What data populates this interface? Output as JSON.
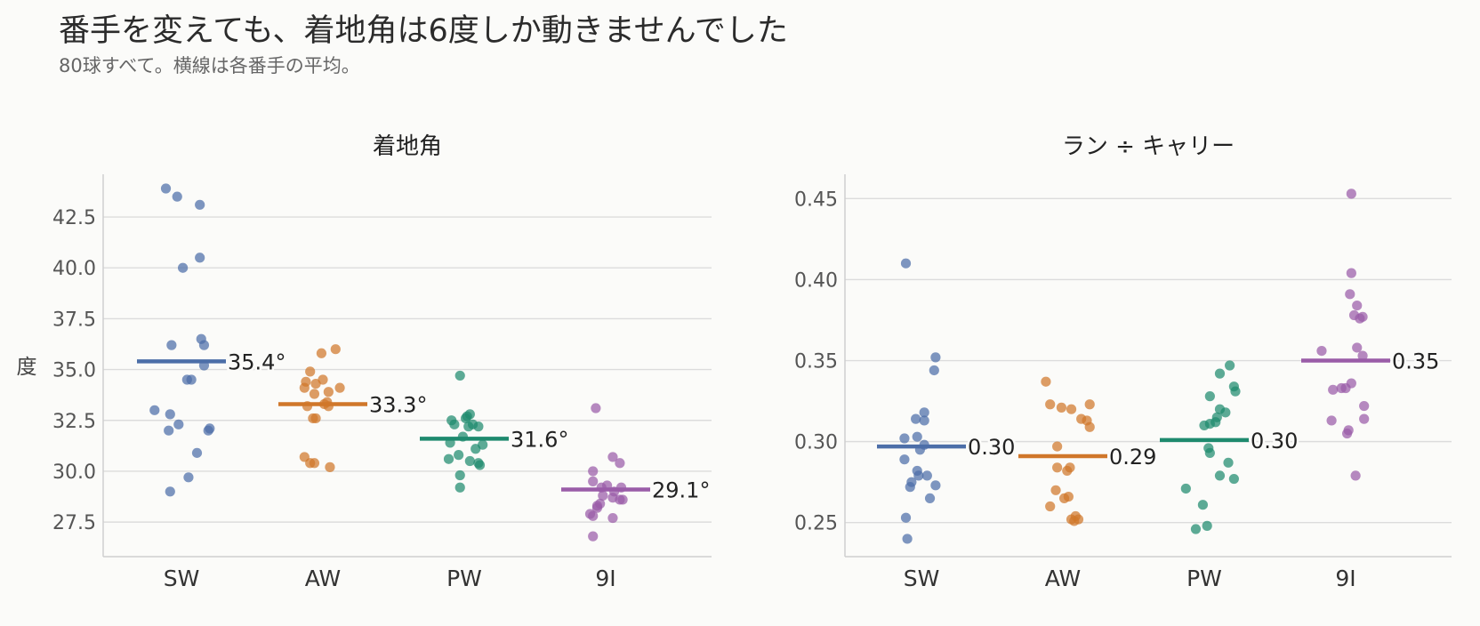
{
  "title": "番手を変えても、着地角は6度しか動きませんでした",
  "subtitle": "80球すべて。横線は各番手の平均。",
  "colors": {
    "SW": "#4c6ea8",
    "AW": "#d0772a",
    "PW": "#1e8a6e",
    "9I": "#9a5ca8",
    "grid": "#dcdcdc",
    "axis": "#cfcfcf"
  },
  "chart_data": [
    {
      "type": "scatter",
      "title": "着地角",
      "ylabel": "度",
      "xlabel": "",
      "categories": [
        "SW",
        "AW",
        "PW",
        "9I"
      ],
      "yticks": [
        "27.5",
        "30.0",
        "32.5",
        "35.0",
        "37.5",
        "40.0",
        "42.5"
      ],
      "ylim": [
        25.8,
        44.6
      ],
      "grid": true,
      "series": [
        {
          "name": "SW",
          "mean": 35.4,
          "mean_label": "35.4°",
          "values": [
            43.9,
            43.5,
            43.1,
            40.5,
            40.0,
            36.5,
            36.2,
            36.2,
            35.2,
            34.5,
            34.5,
            33.0,
            32.8,
            32.3,
            32.0,
            32.1,
            32.0,
            30.9,
            29.7,
            29.0
          ],
          "jitter": [
            -0.11,
            -0.03,
            0.13,
            0.13,
            0.01,
            0.14,
            0.16,
            -0.07,
            0.16,
            0.04,
            0.07,
            -0.19,
            -0.08,
            -0.02,
            -0.09,
            0.2,
            0.19,
            0.11,
            0.05,
            -0.08
          ]
        },
        {
          "name": "AW",
          "mean": 33.3,
          "mean_label": "33.3°",
          "values": [
            36.0,
            35.8,
            34.9,
            34.5,
            34.4,
            34.3,
            34.1,
            34.1,
            33.9,
            33.8,
            33.3,
            33.2,
            33.2,
            32.6,
            32.6,
            30.7,
            30.4,
            30.4,
            30.2,
            33.4
          ],
          "jitter": [
            0.09,
            -0.01,
            -0.09,
            0.0,
            -0.12,
            -0.05,
            0.12,
            -0.13,
            0.04,
            -0.06,
            0.01,
            -0.11,
            0.04,
            -0.07,
            -0.05,
            -0.13,
            -0.09,
            -0.06,
            0.05,
            0.03
          ]
        },
        {
          "name": "PW",
          "mean": 31.6,
          "mean_label": "31.6°",
          "values": [
            34.7,
            32.8,
            32.7,
            32.6,
            32.5,
            32.3,
            32.3,
            32.2,
            32.2,
            31.7,
            31.4,
            31.3,
            31.1,
            30.8,
            30.6,
            30.5,
            30.4,
            30.3,
            29.8,
            29.2
          ],
          "jitter": [
            -0.03,
            0.04,
            0.02,
            0.01,
            -0.09,
            0.06,
            -0.07,
            0.1,
            0.03,
            -0.01,
            -0.1,
            0.13,
            0.08,
            -0.04,
            -0.11,
            0.04,
            0.1,
            0.11,
            -0.03,
            -0.03
          ]
        },
        {
          "name": "9I",
          "mean": 29.1,
          "mean_label": "29.1°",
          "values": [
            33.1,
            30.7,
            30.4,
            30.0,
            29.5,
            29.3,
            29.2,
            29.2,
            29.0,
            28.8,
            28.7,
            28.6,
            28.6,
            28.4,
            28.3,
            28.2,
            27.9,
            27.8,
            27.7,
            26.8
          ],
          "jitter": [
            -0.07,
            0.05,
            0.1,
            -0.09,
            -0.09,
            0.01,
            -0.03,
            0.11,
            0.06,
            -0.02,
            0.05,
            0.1,
            0.12,
            -0.04,
            -0.06,
            -0.06,
            -0.11,
            -0.09,
            0.05,
            -0.09
          ]
        }
      ]
    },
    {
      "type": "scatter",
      "title": "ラン ÷ キャリー",
      "ylabel": "",
      "xlabel": "",
      "categories": [
        "SW",
        "AW",
        "PW",
        "9I"
      ],
      "yticks": [
        "0.25",
        "0.30",
        "0.35",
        "0.40",
        "0.45"
      ],
      "ylim": [
        0.229,
        0.465
      ],
      "grid": true,
      "series": [
        {
          "name": "SW",
          "mean": 0.297,
          "mean_label": "0.30",
          "values": [
            0.41,
            0.352,
            0.344,
            0.318,
            0.314,
            0.313,
            0.303,
            0.302,
            0.298,
            0.295,
            0.289,
            0.282,
            0.279,
            0.279,
            0.275,
            0.272,
            0.273,
            0.265,
            0.253,
            0.24
          ],
          "jitter": [
            -0.11,
            0.1,
            0.09,
            0.02,
            -0.04,
            0.02,
            -0.03,
            -0.12,
            0.02,
            -0.01,
            -0.12,
            -0.03,
            0.04,
            -0.02,
            -0.07,
            -0.08,
            0.1,
            0.06,
            -0.11,
            -0.1
          ]
        },
        {
          "name": "AW",
          "mean": 0.291,
          "mean_label": "0.29",
          "values": [
            0.337,
            0.323,
            0.323,
            0.321,
            0.32,
            0.314,
            0.313,
            0.309,
            0.297,
            0.284,
            0.284,
            0.282,
            0.27,
            0.266,
            0.265,
            0.26,
            0.254,
            0.252,
            0.252,
            0.251
          ],
          "jitter": [
            -0.12,
            -0.09,
            0.19,
            -0.01,
            0.06,
            0.13,
            0.17,
            0.19,
            -0.04,
            -0.04,
            0.05,
            0.03,
            -0.05,
            0.04,
            0.01,
            -0.09,
            0.09,
            0.06,
            0.11,
            0.08
          ]
        },
        {
          "name": "PW",
          "mean": 0.301,
          "mean_label": "0.30",
          "values": [
            0.347,
            0.342,
            0.334,
            0.331,
            0.328,
            0.32,
            0.318,
            0.315,
            0.312,
            0.311,
            0.31,
            0.296,
            0.293,
            0.287,
            0.279,
            0.277,
            0.271,
            0.261,
            0.248,
            0.246
          ],
          "jitter": [
            0.18,
            0.11,
            0.21,
            0.22,
            0.04,
            0.11,
            0.15,
            0.09,
            0.08,
            0.04,
            0.0,
            0.03,
            0.04,
            0.17,
            0.11,
            0.21,
            -0.13,
            -0.01,
            0.02,
            -0.06
          ]
        },
        {
          "name": "9I",
          "mean": 0.35,
          "mean_label": "0.35",
          "values": [
            0.453,
            0.404,
            0.391,
            0.384,
            0.378,
            0.377,
            0.376,
            0.358,
            0.356,
            0.353,
            0.336,
            0.333,
            0.332,
            0.322,
            0.314,
            0.313,
            0.307,
            0.305,
            0.279,
            0.333
          ],
          "jitter": [
            0.04,
            0.04,
            0.03,
            0.08,
            0.06,
            0.12,
            0.1,
            0.08,
            -0.17,
            0.12,
            0.04,
            0.0,
            -0.09,
            0.13,
            0.13,
            -0.1,
            0.02,
            0.01,
            0.07,
            -0.03
          ]
        }
      ]
    }
  ]
}
